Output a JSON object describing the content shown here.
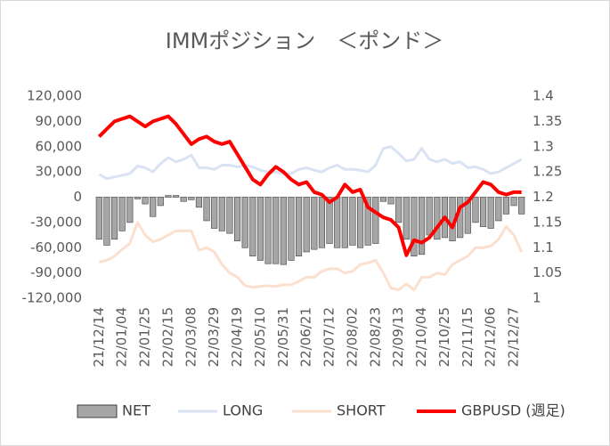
{
  "chart_data": {
    "type": "bar",
    "title": "IMMポジション　＜ポンド＞",
    "categories": [
      "21/12/14",
      null,
      null,
      "22/01/04",
      null,
      null,
      "22/01/25",
      null,
      null,
      "22/02/15",
      null,
      null,
      "22/03/08",
      null,
      null,
      "22/03/29",
      null,
      null,
      "22/04/19",
      null,
      null,
      "22/05/10",
      null,
      null,
      "22/05/31",
      null,
      null,
      "22/06/21",
      null,
      null,
      "22/07/12",
      null,
      null,
      "22/08/02",
      null,
      null,
      "22/08/23",
      null,
      null,
      "22/09/13",
      null,
      null,
      "22/10/04",
      null,
      null,
      "22/10/25",
      null,
      null,
      "22/11/15",
      null,
      null,
      "22/12/06",
      null,
      null,
      "22/12/27",
      null
    ],
    "series": [
      {
        "name": "NET",
        "type": "bar",
        "color": "#a6a6a6",
        "values": [
          -50000,
          -57000,
          -50000,
          -40000,
          -30000,
          -2000,
          -8000,
          -23000,
          -10000,
          2000,
          2000,
          -5000,
          -3000,
          -12000,
          -28000,
          -37000,
          -40000,
          -43000,
          -52000,
          -60000,
          -70000,
          -75000,
          -79000,
          -79000,
          -80000,
          -75000,
          -70000,
          -65000,
          -62000,
          -60000,
          -55000,
          -60000,
          -60000,
          -57000,
          -60000,
          -57000,
          -55000,
          -5000,
          -8000,
          -30000,
          -50000,
          -70000,
          -68000,
          -45000,
          -50000,
          -48000,
          -52000,
          -48000,
          -43000,
          -30000,
          -35000,
          -37000,
          -28000,
          -20000,
          -10000,
          -20000
        ]
      },
      {
        "name": "LONG",
        "type": "line",
        "color": "#dae3f3",
        "values": [
          27000,
          22000,
          24000,
          26000,
          28000,
          37000,
          35000,
          30000,
          40000,
          47000,
          42000,
          45000,
          50000,
          35000,
          35000,
          33000,
          38000,
          38000,
          36000,
          38000,
          36000,
          32000,
          30000,
          30000,
          28000,
          28000,
          33000,
          35000,
          32000,
          30000,
          35000,
          38000,
          33000,
          33000,
          32000,
          30000,
          38000,
          58000,
          60000,
          52000,
          43000,
          45000,
          58000,
          45000,
          42000,
          45000,
          40000,
          42000,
          35000,
          36000,
          33000,
          28000,
          30000,
          35000,
          40000,
          45000
        ]
      },
      {
        "name": "SHORT",
        "type": "line",
        "color": "#fbe0d0",
        "values": [
          -77000,
          -75000,
          -70000,
          -62000,
          -55000,
          -30000,
          -45000,
          -53000,
          -50000,
          -45000,
          -40000,
          -40000,
          -40000,
          -63000,
          -60000,
          -65000,
          -80000,
          -90000,
          -95000,
          -105000,
          -107000,
          -106000,
          -105000,
          -106000,
          -104000,
          -104000,
          -100000,
          -95000,
          -95000,
          -88000,
          -85000,
          -85000,
          -90000,
          -88000,
          -80000,
          -78000,
          -75000,
          -90000,
          -108000,
          -110000,
          -103000,
          -110000,
          -95000,
          -95000,
          -90000,
          -92000,
          -80000,
          -75000,
          -70000,
          -60000,
          -60000,
          -58000,
          -50000,
          -35000,
          -45000,
          -65000
        ]
      },
      {
        "name": "GBPUSD (週足)",
        "type": "line",
        "axis": "y2",
        "color": "#ff0000",
        "values": [
          1.32,
          1.335,
          1.35,
          1.355,
          1.36,
          1.35,
          1.34,
          1.35,
          1.355,
          1.36,
          1.345,
          1.325,
          1.305,
          1.315,
          1.32,
          1.31,
          1.305,
          1.31,
          1.285,
          1.26,
          1.235,
          1.225,
          1.245,
          1.26,
          1.25,
          1.235,
          1.225,
          1.23,
          1.21,
          1.205,
          1.19,
          1.2,
          1.225,
          1.21,
          1.215,
          1.18,
          1.17,
          1.16,
          1.155,
          1.14,
          1.085,
          1.115,
          1.11,
          1.12,
          1.14,
          1.16,
          1.14,
          1.18,
          1.19,
          1.21,
          1.23,
          1.225,
          1.21,
          1.205,
          1.21,
          1.21
        ]
      }
    ],
    "ylim": [
      -120000,
      120000
    ],
    "yticks": [
      {
        "value": -120000,
        "label": "-120,000"
      },
      {
        "value": -90000,
        "label": "-90,000"
      },
      {
        "value": -60000,
        "label": "-60,000"
      },
      {
        "value": -30000,
        "label": "-30,000"
      },
      0,
      {
        "value": 30000,
        "label": "30,000"
      },
      {
        "value": 60000,
        "label": "60,000"
      },
      {
        "value": 90000,
        "label": "90,000"
      },
      {
        "value": 120000,
        "label": "120,000"
      }
    ],
    "y2lim": [
      1,
      1.4
    ],
    "y2ticks": [
      1,
      1.05,
      1.1,
      1.15,
      1.2,
      1.25,
      1.3,
      1.35,
      1.4
    ],
    "legend": "bottom"
  }
}
